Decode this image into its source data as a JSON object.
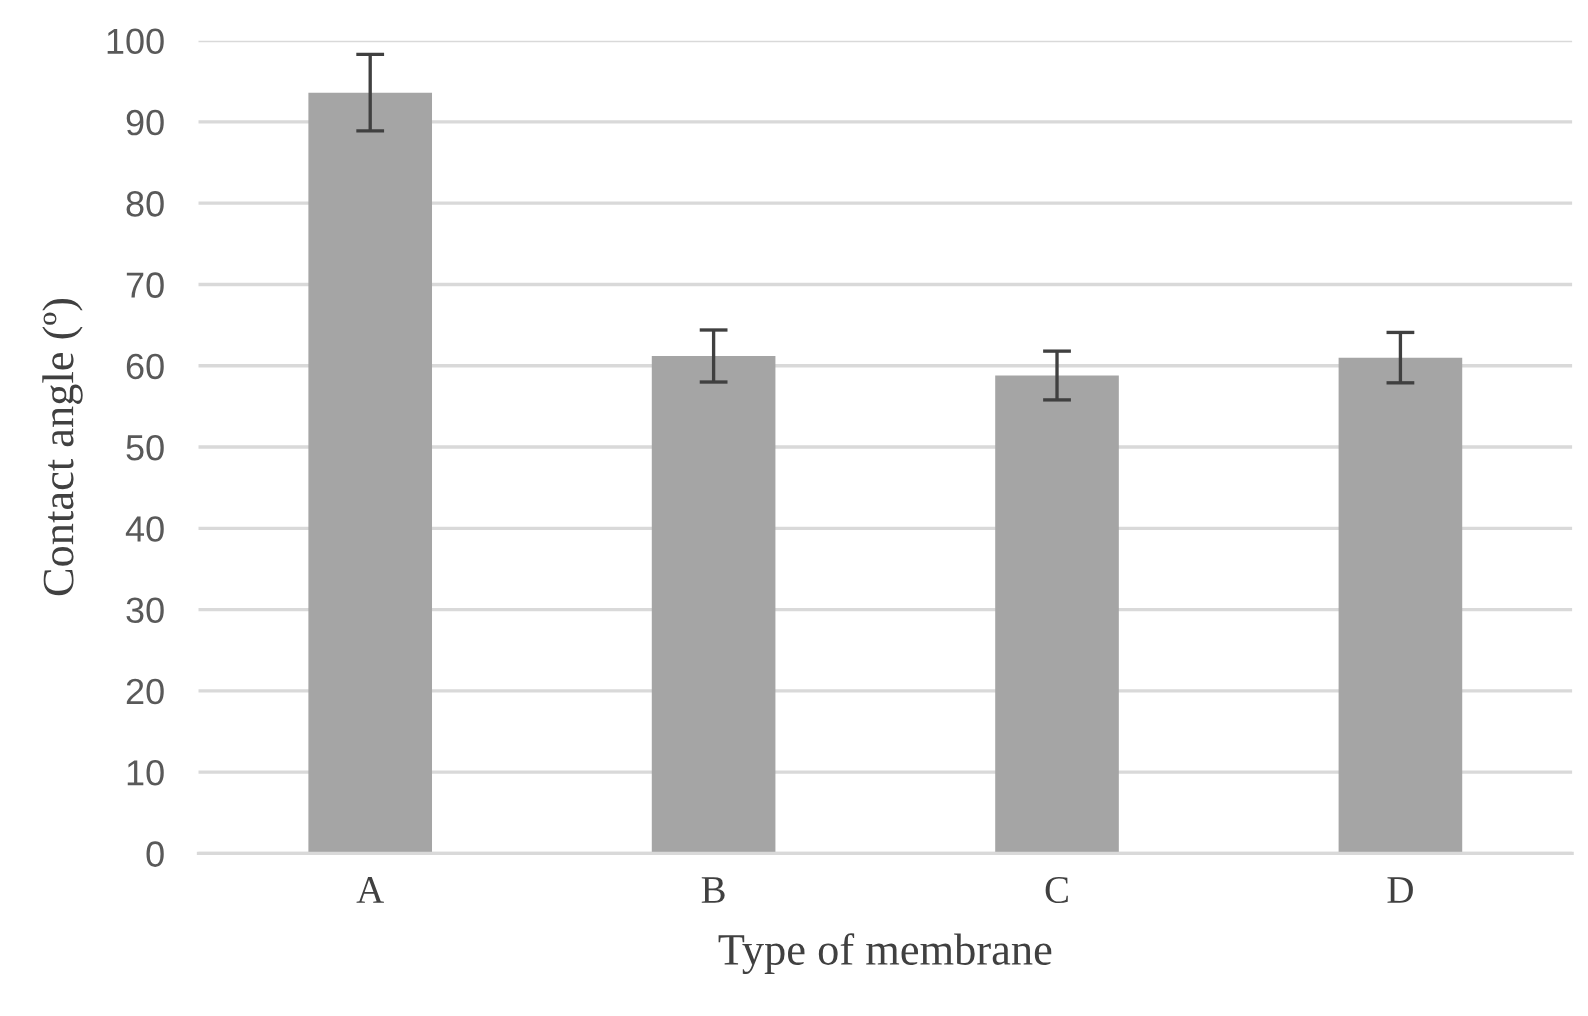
{
  "chart_data": {
    "type": "bar",
    "xlabel": "Type of membrane",
    "ylabel": "Contact angle (º)",
    "categories": [
      "A",
      "B",
      "C",
      "D"
    ],
    "values": [
      93.6,
      61.2,
      58.8,
      61.0
    ],
    "errors": [
      4.7,
      3.2,
      3.0,
      3.1
    ],
    "color": "#a5a5a5",
    "ylim": [
      0,
      100
    ],
    "yticks": [
      0,
      10,
      20,
      30,
      40,
      50,
      60,
      70,
      80,
      90,
      100
    ],
    "grid": "y"
  }
}
